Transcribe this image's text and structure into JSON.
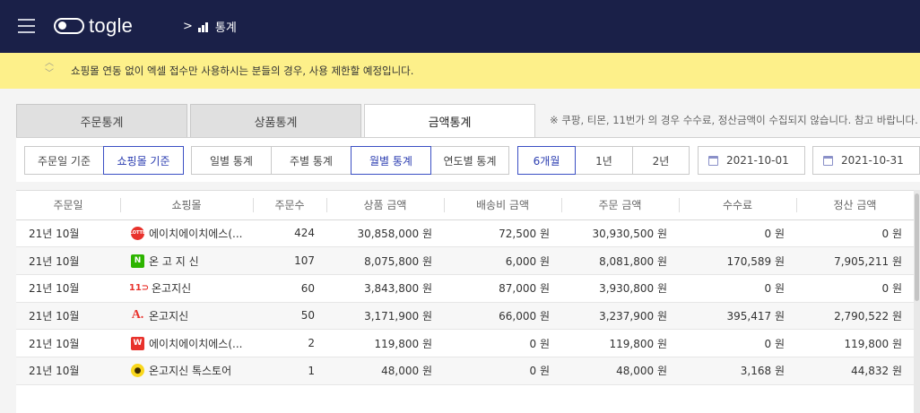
{
  "header": {
    "logo_text": "togle",
    "breadcrumb_sep": ">",
    "breadcrumb_label": "통계"
  },
  "notice": {
    "text": "쇼핑몰 연동 없이 엑셀 접수만 사용하시는 분들의 경우, 사용 제한할 예정입니다."
  },
  "tabs": [
    {
      "label": "주문통계"
    },
    {
      "label": "상품통계"
    },
    {
      "label": "금액통계"
    }
  ],
  "tab_note": "※ 쿠팡, 티몬, 11번가 의 경우 수수료, 정산금액이 수집되지 않습니다. 참고 바랍니다.",
  "filters": {
    "basis": [
      {
        "label": "주문일 기준"
      },
      {
        "label": "쇼핑몰 기준"
      }
    ],
    "period_unit": [
      {
        "label": "일별 통계"
      },
      {
        "label": "주별 통계"
      },
      {
        "label": "월별 통계"
      },
      {
        "label": "연도별 통계"
      }
    ],
    "range": [
      {
        "label": "6개월"
      },
      {
        "label": "1년"
      },
      {
        "label": "2년"
      }
    ],
    "start_date": "2021-10-01",
    "end_date": "2021-10-31"
  },
  "table": {
    "headers": [
      "주문일",
      "쇼핑몰",
      "주문수",
      "상품 금액",
      "배송비 금액",
      "주문 금액",
      "수수료",
      "정산 금액"
    ],
    "rows": [
      {
        "date": "21년 10월",
        "mall": "에이치에이치에스(...",
        "icon": "lotte-icon",
        "orders": "424",
        "product": "30,858,000 원",
        "shipping": "72,500 원",
        "order_amt": "30,930,500 원",
        "fee": "0 원",
        "settle": "0 원"
      },
      {
        "date": "21년 10월",
        "mall": "온 고 지 신",
        "icon": "naver-icon",
        "orders": "107",
        "product": "8,075,800 원",
        "shipping": "6,000 원",
        "order_amt": "8,081,800 원",
        "fee": "170,589 원",
        "settle": "7,905,211 원"
      },
      {
        "date": "21년 10월",
        "mall": "온고지신",
        "icon": "11st-icon",
        "orders": "60",
        "product": "3,843,800 원",
        "shipping": "87,000 원",
        "order_amt": "3,930,800 원",
        "fee": "0 원",
        "settle": "0 원"
      },
      {
        "date": "21년 10월",
        "mall": "온고지신",
        "icon": "auction-icon",
        "orders": "50",
        "product": "3,171,900 원",
        "shipping": "66,000 원",
        "order_amt": "3,237,900 원",
        "fee": "395,417 원",
        "settle": "2,790,522 원"
      },
      {
        "date": "21년 10월",
        "mall": "에이치에이치에스(...",
        "icon": "wemakeprice-icon",
        "orders": "2",
        "product": "119,800 원",
        "shipping": "0 원",
        "order_amt": "119,800 원",
        "fee": "0 원",
        "settle": "119,800 원"
      },
      {
        "date": "21년 10월",
        "mall": "온고지신 톡스토어",
        "icon": "kakao-icon",
        "orders": "1",
        "product": "48,000 원",
        "shipping": "0 원",
        "order_amt": "48,000 원",
        "fee": "3,168 원",
        "settle": "44,832 원"
      }
    ]
  }
}
